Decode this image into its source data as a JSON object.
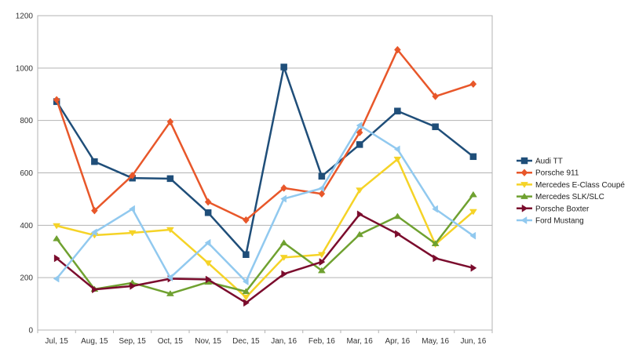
{
  "chart_data": {
    "type": "line",
    "title": "",
    "xlabel": "",
    "ylabel": "",
    "ylim": [
      0,
      1200
    ],
    "yticks": [
      0,
      200,
      400,
      600,
      800,
      1000,
      1200
    ],
    "grid": true,
    "legend": "right",
    "categories": [
      "Jul, 15",
      "Aug, 15",
      "Sep, 15",
      "Oct, 15",
      "Nov, 15",
      "Dec, 15",
      "Jan, 16",
      "Feb, 16",
      "Mar, 16",
      "Apr, 16",
      "May, 16",
      "Jun, 16"
    ],
    "series": [
      {
        "name": "Audi TT",
        "color": "#1f4e79",
        "marker": "square",
        "values": [
          872,
          643,
          580,
          578,
          448,
          288,
          1004,
          587,
          708,
          836,
          776,
          662
        ]
      },
      {
        "name": "Porsche 911",
        "color": "#e8572a",
        "marker": "diamond",
        "values": [
          879,
          456,
          590,
          795,
          489,
          420,
          542,
          520,
          754,
          1070,
          892,
          939
        ]
      },
      {
        "name": "Mercedes E-Class Coupé",
        "color": "#f5d327",
        "marker": "triangle-down",
        "values": [
          398,
          362,
          371,
          383,
          256,
          125,
          277,
          288,
          534,
          652,
          327,
          452
        ]
      },
      {
        "name": "Mercedes SLK/SLC",
        "color": "#6fa130",
        "marker": "triangle-up",
        "values": [
          349,
          156,
          180,
          139,
          183,
          147,
          333,
          227,
          365,
          434,
          330,
          517
        ]
      },
      {
        "name": "Porsche Boxter",
        "color": "#7b0c2d",
        "marker": "triangle-right",
        "values": [
          274,
          155,
          168,
          196,
          193,
          104,
          214,
          260,
          442,
          367,
          274,
          237
        ]
      },
      {
        "name": "Ford Mustang",
        "color": "#91c9ef",
        "marker": "triangle-left",
        "values": [
          196,
          373,
          462,
          200,
          333,
          185,
          501,
          541,
          781,
          690,
          462,
          360
        ]
      }
    ]
  }
}
